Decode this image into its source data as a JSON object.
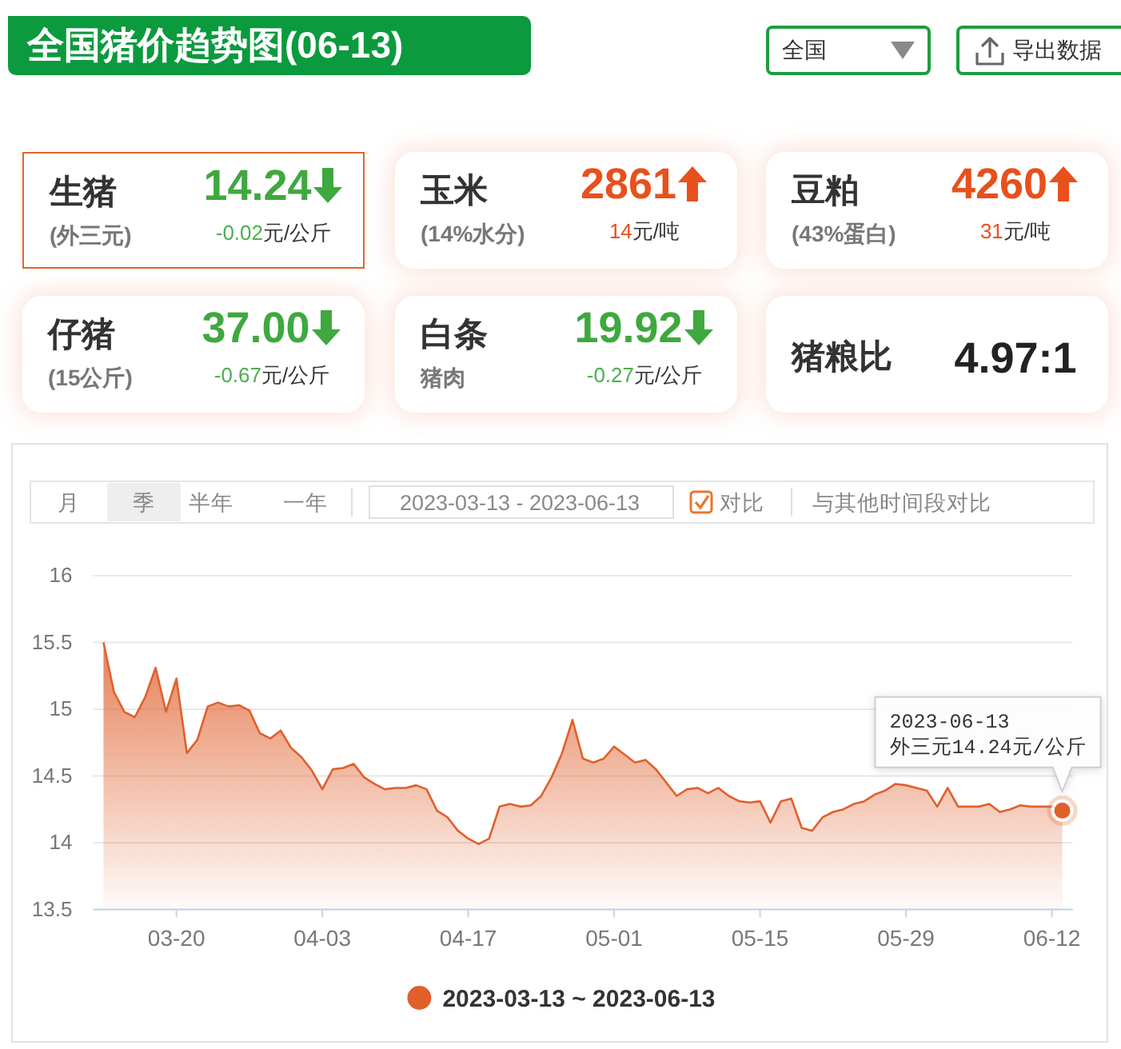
{
  "chart_data": [
    {
      "type": "other",
      "title": "全国猪价趋势图(06-13)",
      "annotations": [
        "全国",
        "导出数据",
        "生猪",
        "(外三元)",
        "14.24",
        "-0.02",
        "元/公斤",
        "玉米",
        "(14%水分)",
        "2861",
        "14",
        "元/吨",
        "豆粕",
        "(43%蛋白)",
        "4260",
        "31",
        "元/吨",
        "仔猪",
        "(15公斤)",
        "37.00",
        "-0.67",
        "元/公斤",
        "白条",
        "猪肉",
        "19.92",
        "-0.27",
        "元/公斤",
        "猪粮比",
        "4.97:1"
      ]
    },
    {
      "type": "area",
      "x": [
        "2023-03-13",
        "2023-03-14",
        "2023-03-15",
        "2023-03-16",
        "2023-03-17",
        "2023-03-18",
        "2023-03-19",
        "2023-03-20",
        "2023-03-21",
        "2023-03-22",
        "2023-03-23",
        "2023-03-24",
        "2023-03-25",
        "2023-03-26",
        "2023-03-27",
        "2023-03-28",
        "2023-03-29",
        "2023-03-30",
        "2023-03-31",
        "2023-04-01",
        "2023-04-02",
        "2023-04-03",
        "2023-04-04",
        "2023-04-05",
        "2023-04-06",
        "2023-04-07",
        "2023-04-08",
        "2023-04-09",
        "2023-04-10",
        "2023-04-11",
        "2023-04-12",
        "2023-04-13",
        "2023-04-14",
        "2023-04-15",
        "2023-04-16",
        "2023-04-17",
        "2023-04-18",
        "2023-04-19",
        "2023-04-20",
        "2023-04-21",
        "2023-04-22",
        "2023-04-23",
        "2023-04-24",
        "2023-04-25",
        "2023-04-26",
        "2023-04-27",
        "2023-04-28",
        "2023-04-29",
        "2023-04-30",
        "2023-05-01",
        "2023-05-02",
        "2023-05-03",
        "2023-05-04",
        "2023-05-05",
        "2023-05-06",
        "2023-05-07",
        "2023-05-08",
        "2023-05-09",
        "2023-05-10",
        "2023-05-11",
        "2023-05-12",
        "2023-05-13",
        "2023-05-14",
        "2023-05-15",
        "2023-05-16",
        "2023-05-17",
        "2023-05-18",
        "2023-05-19",
        "2023-05-20",
        "2023-05-21",
        "2023-05-22",
        "2023-05-23",
        "2023-05-24",
        "2023-05-25",
        "2023-05-26",
        "2023-05-27",
        "2023-05-28",
        "2023-05-29",
        "2023-05-30",
        "2023-05-31",
        "2023-06-01",
        "2023-06-02",
        "2023-06-03",
        "2023-06-04",
        "2023-06-05",
        "2023-06-06",
        "2023-06-07",
        "2023-06-08",
        "2023-06-09",
        "2023-06-10",
        "2023-06-11",
        "2023-06-12",
        "2023-06-13"
      ],
      "series": [
        {
          "name": "2023-03-13 ~ 2023-06-13",
          "color": "#e0602c",
          "values": [
            15.5,
            15.13,
            14.98,
            14.94,
            15.09,
            15.31,
            14.98,
            15.23,
            14.67,
            14.77,
            15.02,
            15.05,
            15.02,
            15.03,
            14.99,
            14.82,
            14.78,
            14.84,
            14.71,
            14.64,
            14.54,
            14.4,
            14.55,
            14.56,
            14.59,
            14.49,
            14.44,
            14.4,
            14.41,
            14.41,
            14.43,
            14.4,
            14.24,
            14.19,
            14.09,
            14.03,
            13.99,
            14.03,
            14.27,
            14.29,
            14.27,
            14.28,
            14.35,
            14.49,
            14.67,
            14.92,
            14.63,
            14.6,
            14.63,
            14.72,
            14.66,
            14.6,
            14.62,
            14.55,
            14.45,
            14.35,
            14.4,
            14.41,
            14.37,
            14.41,
            14.35,
            14.31,
            14.3,
            14.31,
            14.15,
            14.31,
            14.33,
            14.11,
            14.09,
            14.19,
            14.23,
            14.25,
            14.29,
            14.31,
            14.36,
            14.39,
            14.44,
            14.43,
            14.41,
            14.39,
            14.27,
            14.41,
            14.27,
            14.27,
            14.27,
            14.29,
            14.23,
            14.25,
            14.28,
            14.27,
            14.27,
            14.27,
            14.24
          ]
        }
      ],
      "xlim": [
        "2023-03-12",
        "2023-06-14"
      ],
      "xticks": [
        {
          "value": "2023-03-20",
          "label": "03-20"
        },
        {
          "value": "2023-04-03",
          "label": "04-03"
        },
        {
          "value": "2023-04-17",
          "label": "04-17"
        },
        {
          "value": "2023-05-01",
          "label": "05-01"
        },
        {
          "value": "2023-05-15",
          "label": "05-15"
        },
        {
          "value": "2023-05-29",
          "label": "05-29"
        },
        {
          "value": "2023-06-12",
          "label": "06-12"
        }
      ],
      "ylim": [
        13.5,
        16
      ],
      "yticks": [
        13.5,
        14,
        14.5,
        15,
        15.5,
        16
      ],
      "grid": "y",
      "legend": "bottom",
      "annotations": [
        {
          "text": "2023-06-13\n外三元14.24元/公斤",
          "x": "2023-06-13",
          "y": 14.24
        },
        "月",
        "季",
        "半年",
        "一年",
        "2023-03-13 - 2023-06-13",
        "对比",
        "与其他时间段对比"
      ]
    }
  ]
}
